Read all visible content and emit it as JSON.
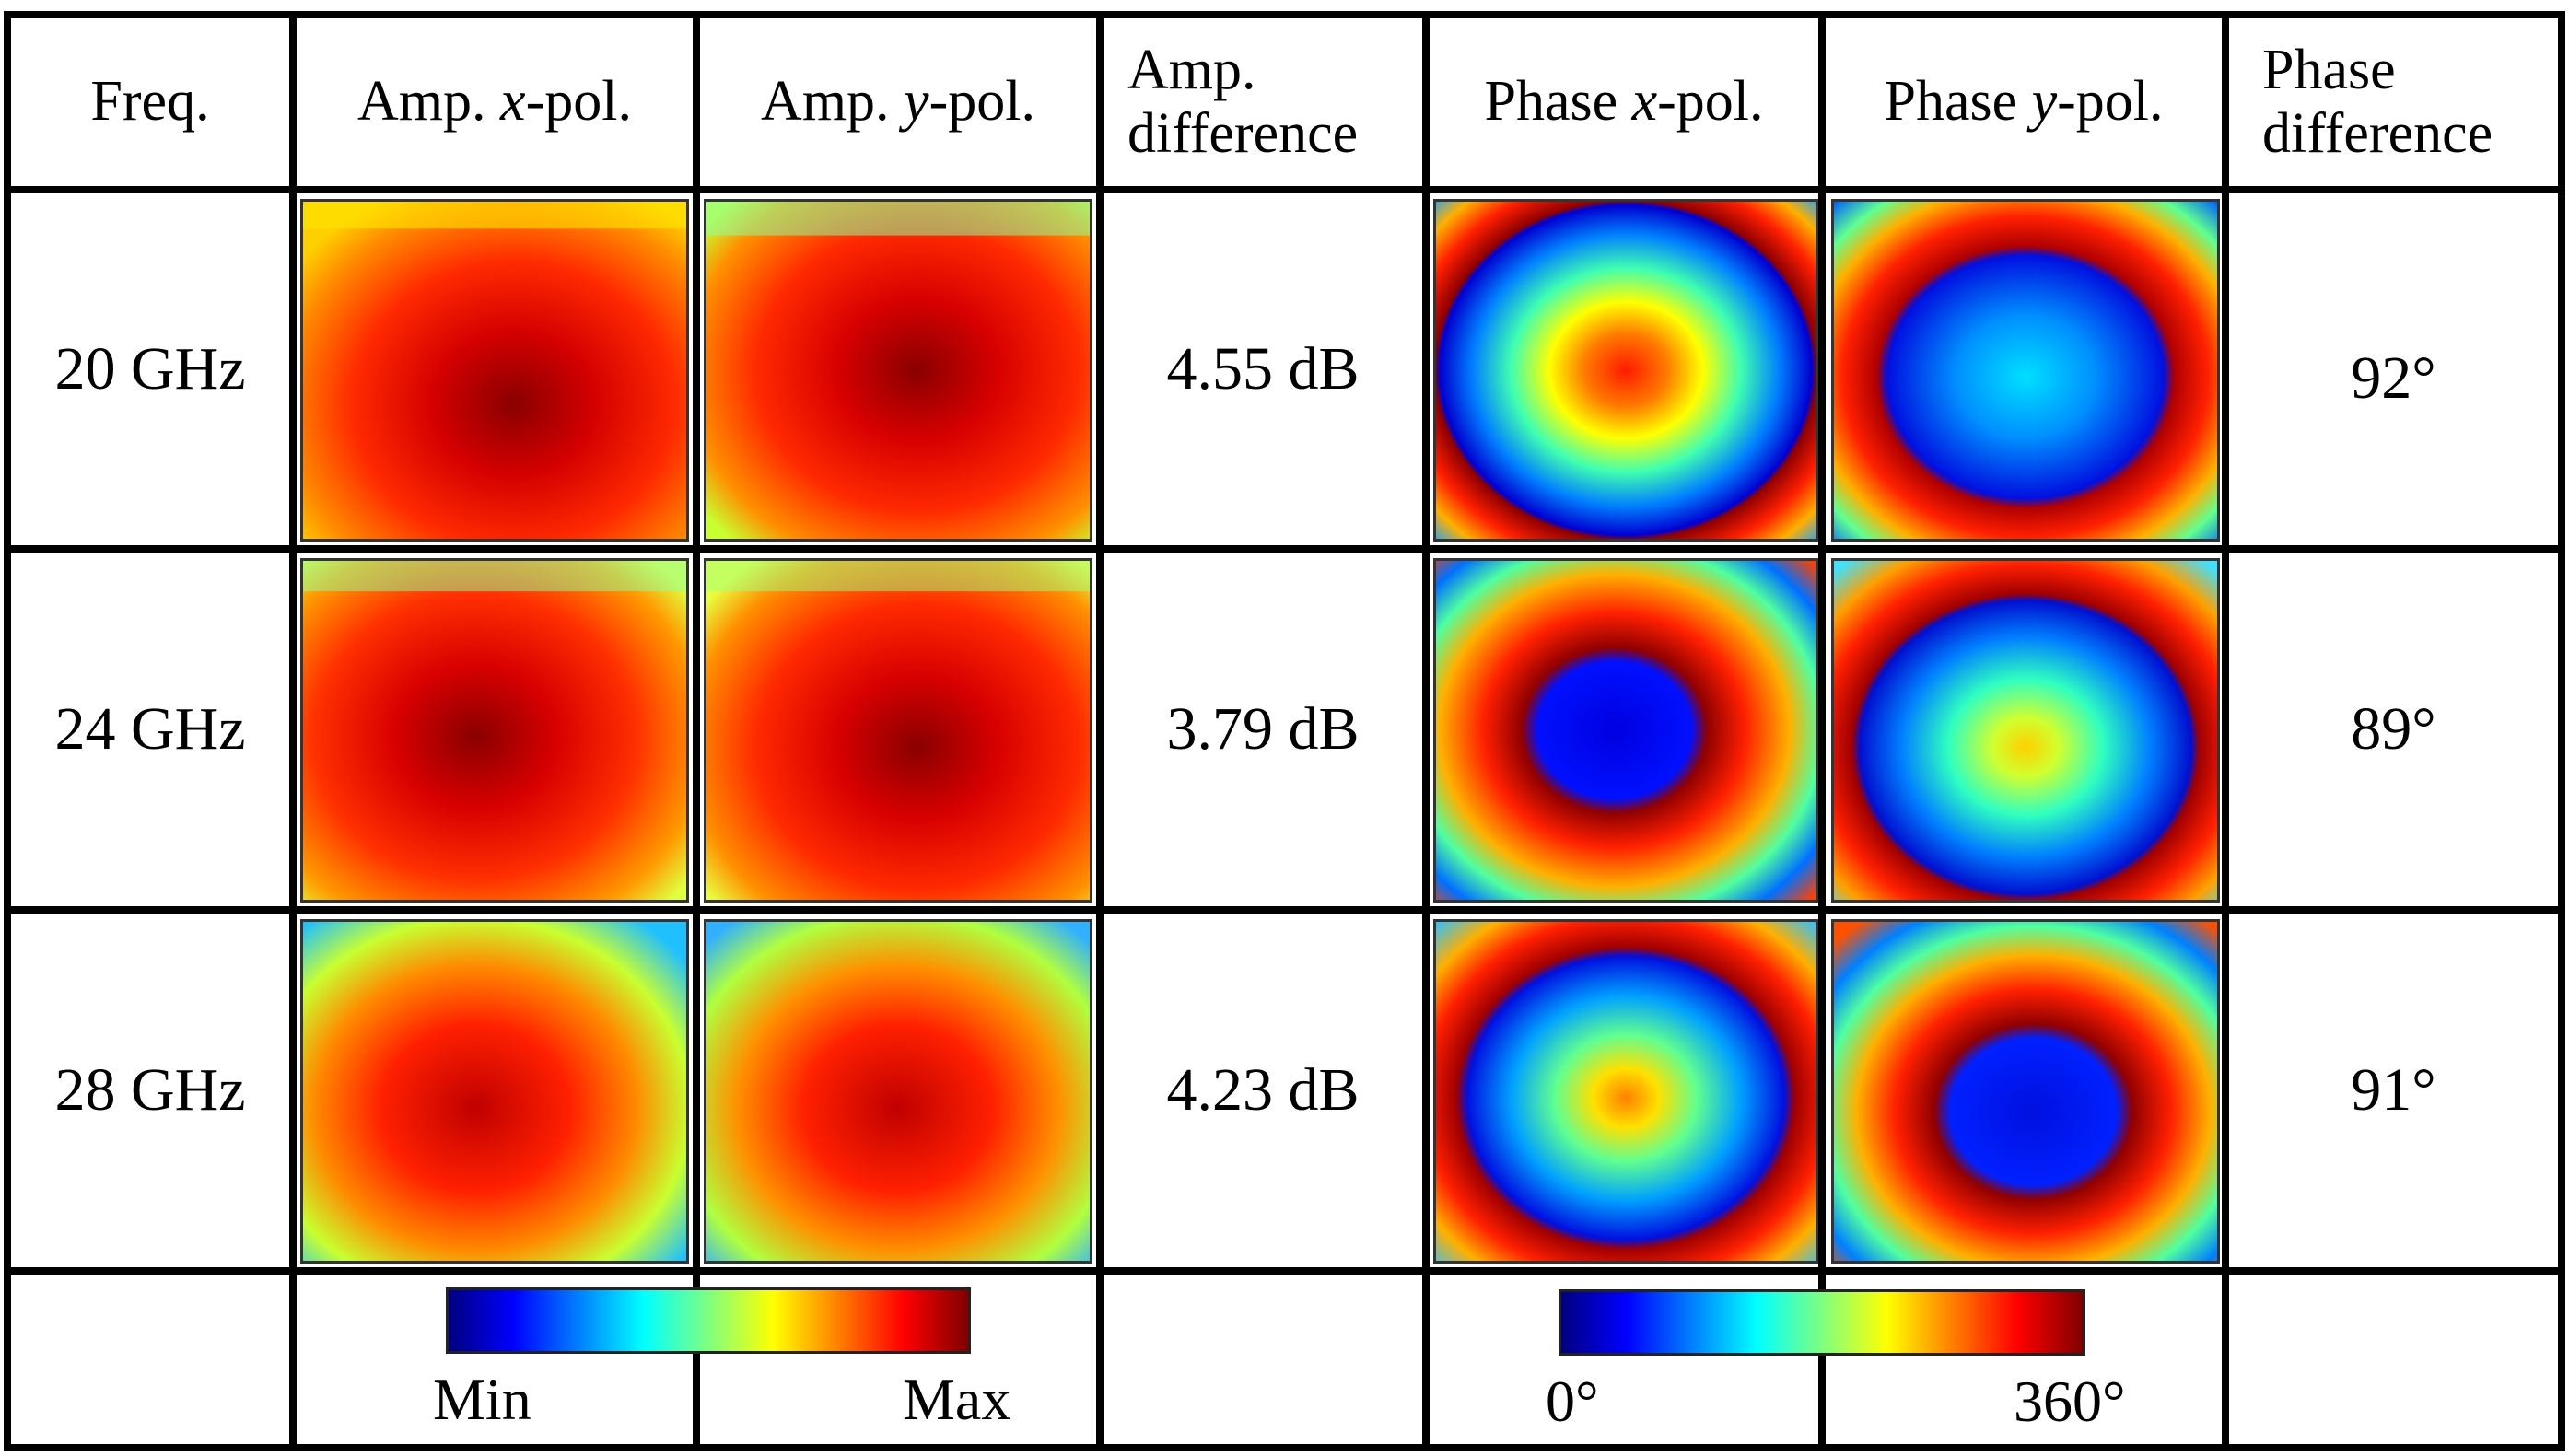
{
  "headers": {
    "freq": "Freq.",
    "amp_x_pre": "Amp. ",
    "amp_x_pol": "x",
    "amp_x_post": "-pol.",
    "amp_y_pre": "Amp. ",
    "amp_y_pol": "y",
    "amp_y_post": "-pol.",
    "amp_diff_1": "Amp.",
    "amp_diff_2": "difference",
    "phase_x_pre": "Phase ",
    "phase_x_pol": "x",
    "phase_x_post": "-pol.",
    "phase_y_pre": "Phase ",
    "phase_y_pol": "y",
    "phase_y_post": "-pol.",
    "phase_diff_1": "Phase",
    "phase_diff_2": "difference"
  },
  "rows": [
    {
      "freq": "20 GHz",
      "amp_diff": "4.55 dB",
      "phase_diff": "92°"
    },
    {
      "freq": "24 GHz",
      "amp_diff": "3.79 dB",
      "phase_diff": "89°"
    },
    {
      "freq": "28 GHz",
      "amp_diff": "4.23 dB",
      "phase_diff": "91°"
    }
  ],
  "colorbars": {
    "amplitude": {
      "min_label": "Min",
      "max_label": "Max"
    },
    "phase": {
      "min_label": "0°",
      "max_label": "360°"
    }
  },
  "colors": {
    "jet": [
      "#00007f",
      "#0000ff",
      "#007fff",
      "#00ffff",
      "#7fff7f",
      "#ffff00",
      "#ff7f00",
      "#ff0000",
      "#7f0000"
    ],
    "grid_line": "#000000"
  }
}
